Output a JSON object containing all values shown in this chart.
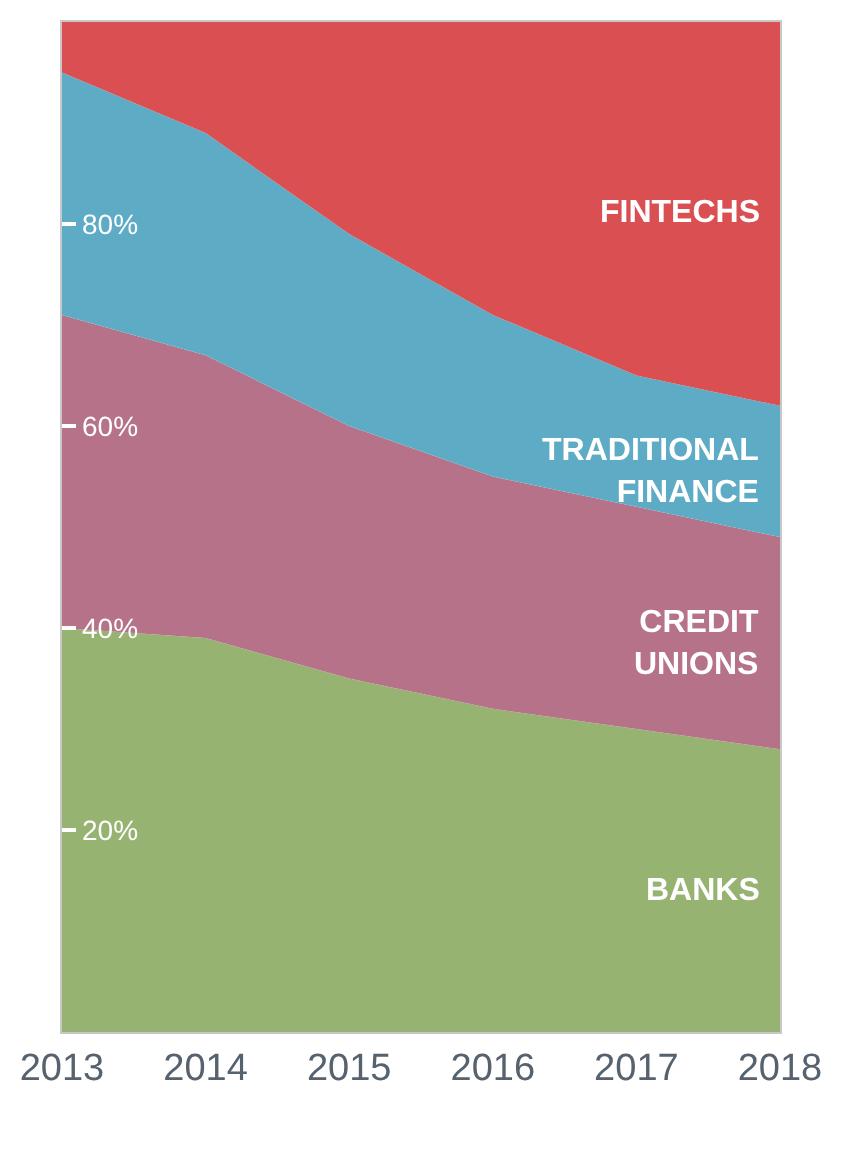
{
  "chart_data": {
    "type": "area",
    "stacked": true,
    "legend": false,
    "x": [
      2013,
      2014,
      2015,
      2016,
      2017,
      2018
    ],
    "xlim": [
      2013,
      2018
    ],
    "xticks": [
      2013,
      2014,
      2015,
      2016,
      2017,
      2018
    ],
    "ylim": [
      0,
      100
    ],
    "yticks": [
      {
        "value": 20,
        "label": "20%"
      },
      {
        "value": 40,
        "label": "40%"
      },
      {
        "value": 60,
        "label": "60%"
      },
      {
        "value": 80,
        "label": "80%"
      }
    ],
    "series": [
      {
        "name": "BANKS",
        "color": "#97b372",
        "values": [
          40,
          39,
          35,
          32,
          30,
          28
        ]
      },
      {
        "name": "CREDIT\nUNIONS",
        "color": "#b67288",
        "values": [
          31,
          28,
          25,
          23,
          22,
          21
        ]
      },
      {
        "name": "TRADITIONAL\nFINANCE",
        "color": "#5eabc5",
        "values": [
          24,
          22,
          19,
          16,
          13,
          13
        ]
      },
      {
        "name": "FINTECHS",
        "color": "#d94f52",
        "values": [
          5,
          11,
          21,
          29,
          35,
          38
        ]
      }
    ]
  }
}
